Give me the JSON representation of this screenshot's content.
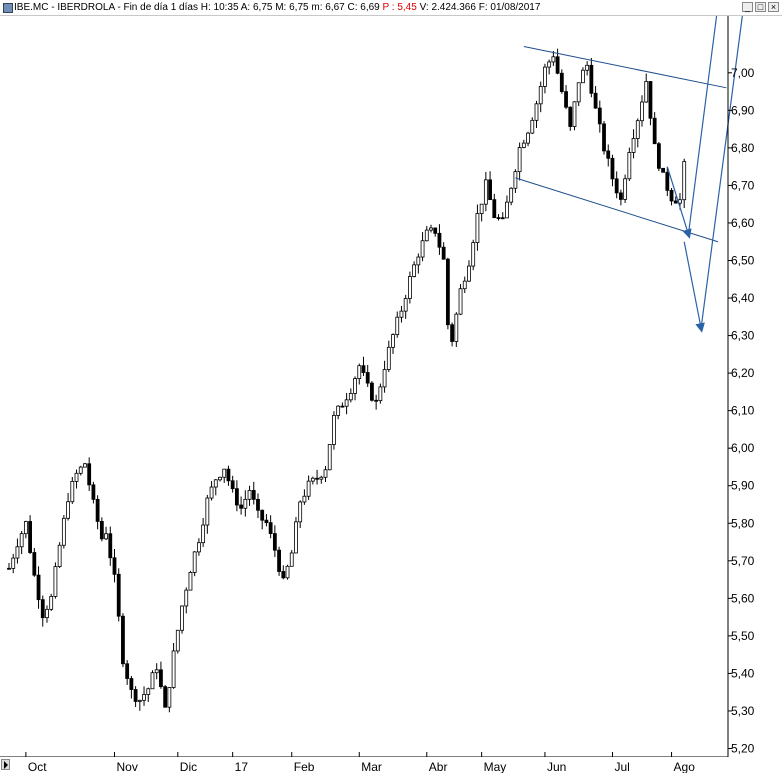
{
  "window": {
    "title_main": "IBE.MC - IBERDROLA - Fin de día 1 días  H: 10:35  A: 6,75  M: 6,75  m: 6,67  C: 6,69 ",
    "title_p": "P : 5,45",
    "title_tail": " V: 2.424.366  F: 01/08/2017",
    "minimize_glyph": "_",
    "maximize_glyph": "□",
    "close_glyph": "×"
  },
  "chart_data": {
    "type": "candlestick",
    "title": "IBE.MC - IBERDROLA - Fin de día 1 días",
    "y_ticks": [
      "7,00",
      "6,90",
      "6,80",
      "6,70",
      "6,60",
      "6,50",
      "6,40",
      "6,30",
      "6,20",
      "6,10",
      "6,00",
      "5,90",
      "5,80",
      "5,70",
      "5,60",
      "5,50",
      "5,40",
      "5,30",
      "5,20"
    ],
    "x_ticks": [
      "Oct",
      "Nov",
      "Dic",
      "17",
      "Feb",
      "Mar",
      "Abr",
      "May",
      "Jun",
      "Jul",
      "Ago"
    ],
    "ylim": [
      5.18,
      7.13
    ],
    "grid": false,
    "price_path": [
      [
        0,
        5.68
      ],
      [
        2,
        5.75
      ],
      [
        4,
        5.8
      ],
      [
        6,
        5.66
      ],
      [
        8,
        5.56
      ],
      [
        10,
        5.6
      ],
      [
        12,
        5.74
      ],
      [
        14,
        5.87
      ],
      [
        16,
        5.93
      ],
      [
        18,
        5.96
      ],
      [
        20,
        5.85
      ],
      [
        22,
        5.76
      ],
      [
        23,
        5.78
      ],
      [
        25,
        5.65
      ],
      [
        27,
        5.44
      ],
      [
        29,
        5.35
      ],
      [
        31,
        5.33
      ],
      [
        33,
        5.36
      ],
      [
        35,
        5.42
      ],
      [
        37,
        5.3
      ],
      [
        39,
        5.45
      ],
      [
        41,
        5.58
      ],
      [
        43,
        5.68
      ],
      [
        45,
        5.76
      ],
      [
        47,
        5.86
      ],
      [
        49,
        5.92
      ],
      [
        51,
        5.95
      ],
      [
        53,
        5.88
      ],
      [
        55,
        5.84
      ],
      [
        57,
        5.89
      ],
      [
        59,
        5.82
      ],
      [
        61,
        5.8
      ],
      [
        63,
        5.73
      ],
      [
        65,
        5.64
      ],
      [
        67,
        5.72
      ],
      [
        69,
        5.86
      ],
      [
        71,
        5.9
      ],
      [
        73,
        5.92
      ],
      [
        75,
        5.95
      ],
      [
        77,
        6.08
      ],
      [
        79,
        6.12
      ],
      [
        81,
        6.16
      ],
      [
        83,
        6.22
      ],
      [
        85,
        6.16
      ],
      [
        87,
        6.12
      ],
      [
        89,
        6.22
      ],
      [
        91,
        6.3
      ],
      [
        93,
        6.37
      ],
      [
        95,
        6.45
      ],
      [
        97,
        6.52
      ],
      [
        99,
        6.57
      ],
      [
        101,
        6.58
      ],
      [
        103,
        6.5
      ],
      [
        104,
        6.33
      ],
      [
        105,
        6.29
      ],
      [
        107,
        6.42
      ],
      [
        109,
        6.5
      ],
      [
        111,
        6.62
      ],
      [
        113,
        6.7
      ],
      [
        115,
        6.62
      ],
      [
        117,
        6.6
      ],
      [
        119,
        6.7
      ],
      [
        121,
        6.8
      ],
      [
        123,
        6.85
      ],
      [
        125,
        6.92
      ],
      [
        127,
        7.01
      ],
      [
        129,
        7.05
      ],
      [
        131,
        6.95
      ],
      [
        133,
        6.85
      ],
      [
        135,
        6.98
      ],
      [
        137,
        7.02
      ],
      [
        139,
        6.9
      ],
      [
        141,
        6.8
      ],
      [
        143,
        6.72
      ],
      [
        145,
        6.66
      ],
      [
        147,
        6.8
      ],
      [
        149,
        6.88
      ],
      [
        151,
        6.98
      ],
      [
        153,
        6.8
      ],
      [
        155,
        6.72
      ],
      [
        157,
        6.67
      ],
      [
        159,
        6.66
      ],
      [
        160,
        6.75
      ]
    ],
    "bars_per_month": 22,
    "x_tick_bar": [
      4,
      25,
      40,
      53,
      67,
      83,
      99,
      112,
      127,
      143,
      157
    ],
    "channel_lines": [
      {
        "from": [
          122,
          7.07
        ],
        "to": [
          170,
          6.96
        ]
      },
      {
        "from": [
          120,
          6.72
        ],
        "to": [
          168,
          6.55
        ]
      }
    ],
    "projection_lines": [
      {
        "from": [
          156,
          6.75
        ],
        "to": [
          161,
          6.57
        ]
      },
      {
        "from": [
          161,
          6.57
        ],
        "to": [
          168,
          7.18
        ]
      },
      {
        "from": [
          160,
          6.55
        ],
        "to": [
          164,
          6.32
        ]
      },
      {
        "from": [
          164,
          6.32
        ],
        "to": [
          174,
          7.17
        ]
      }
    ],
    "colors": {
      "candle": "#000000",
      "channel": "#1f4e8c",
      "arrow": "#2b62a8"
    }
  }
}
